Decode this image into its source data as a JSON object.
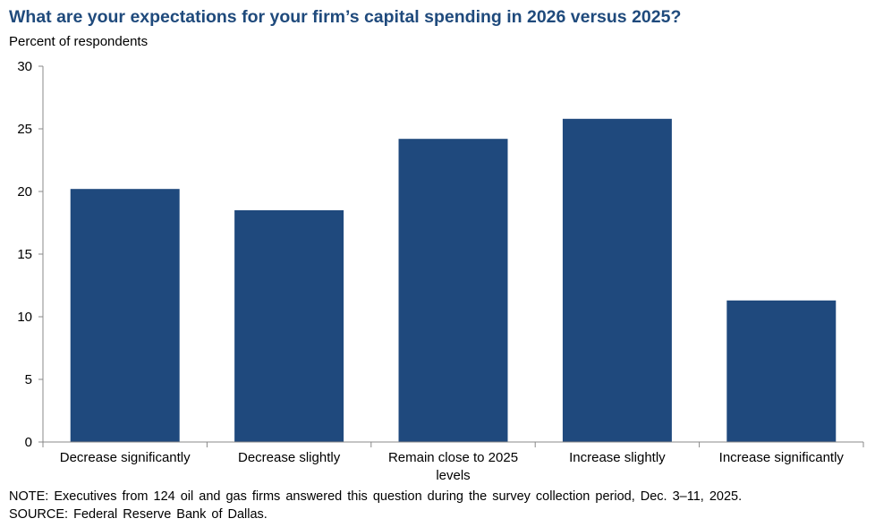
{
  "chart_data": {
    "type": "bar",
    "title": "What are your expectations for your firm’s capital spending in 2026 versus 2025?",
    "ylabel": "Percent of respondents",
    "xlabel": "",
    "categories": [
      "Decrease significantly",
      "Decrease slightly",
      "Remain close to 2025 levels",
      "Increase slightly",
      "Increase significantly"
    ],
    "category_lines": [
      [
        "Decrease significantly"
      ],
      [
        "Decrease slightly"
      ],
      [
        "Remain close to 2025",
        "levels"
      ],
      [
        "Increase slightly"
      ],
      [
        "Increase significantly"
      ]
    ],
    "values": [
      20.2,
      18.5,
      24.2,
      25.8,
      11.3
    ],
    "ylim": [
      0,
      30
    ],
    "yticks": [
      0,
      5,
      10,
      15,
      20,
      25,
      30
    ],
    "grid": false,
    "bar_color": "#1f497d"
  },
  "notes": {
    "note": "NOTE: Executives from 124 oil and gas firms answered this question during the survey collection period, Dec. 3–11, 2025.",
    "source": "SOURCE: Federal Reserve Bank of Dallas."
  }
}
